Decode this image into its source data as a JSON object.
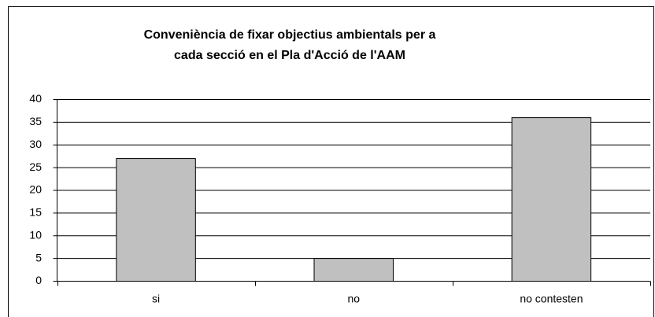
{
  "chart_data": {
    "type": "bar",
    "title": [
      "Conveniència de fixar objectius ambientals per a",
      "cada secció en el Pla d'Acció de l'AAM"
    ],
    "categories": [
      "si",
      "no",
      "no contesten"
    ],
    "values": [
      27,
      5,
      36
    ],
    "color": "#c0c0c0",
    "ylim": [
      0,
      40
    ],
    "yticks": [
      0,
      5,
      10,
      15,
      20,
      25,
      30,
      35,
      40
    ],
    "grid": true
  }
}
